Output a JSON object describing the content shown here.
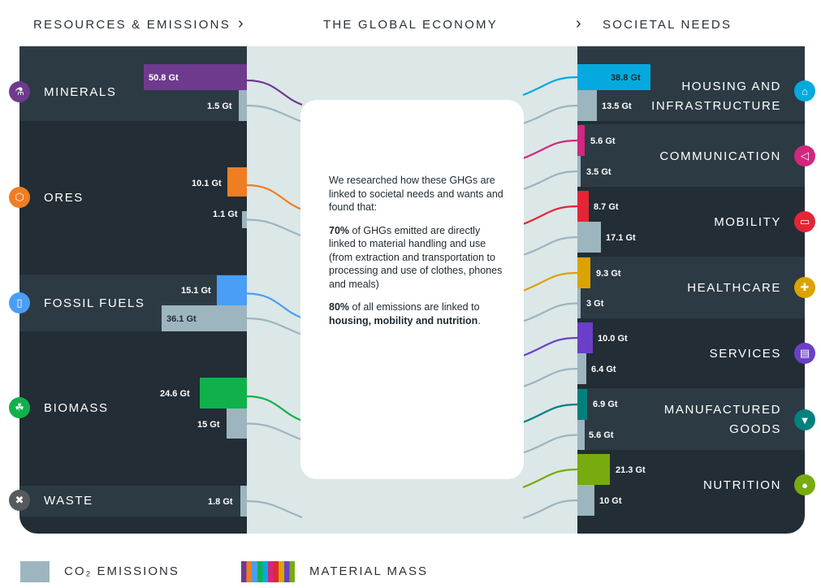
{
  "headers": {
    "left": "RESOURCES & EMISSIONS",
    "middle": "THE GLOBAL ECONOMY",
    "right": "SOCIETAL NEEDS"
  },
  "resources": [
    {
      "label": "MINERALS",
      "icon": "flask-icon",
      "color": "#6e3a8e",
      "material": "50.8 Gt",
      "emissions": "1.5 Gt"
    },
    {
      "label": "ORES",
      "icon": "hexagon-icon",
      "color": "#ef7d22",
      "material": "10.1 Gt",
      "emissions": "1.1 Gt"
    },
    {
      "label": "FOSSIL FUELS",
      "icon": "canister-icon",
      "color": "#4a9ef5",
      "material": "15.1 Gt",
      "emissions": "36.1 Gt"
    },
    {
      "label": "BIOMASS",
      "icon": "leaf-icon",
      "color": "#10b14b",
      "material": "24.6 Gt",
      "emissions": "15 Gt"
    },
    {
      "label": "WASTE",
      "icon": "trash-icon",
      "color": "#555a5f",
      "emissions": "1.8 Gt"
    }
  ],
  "needs": [
    {
      "label": "HOUSING AND INFRASTRUCTURE",
      "label_lines": [
        "HOUSING AND",
        "INFRASTRUCTURE"
      ],
      "icon": "house-icon",
      "color": "#06a9de",
      "material": "38.8 Gt",
      "emissions": "13.5 Gt"
    },
    {
      "label": "COMMUNICATION",
      "label_lines": [
        "COMMUNICATION"
      ],
      "icon": "megaphone-icon",
      "color": "#d2277f",
      "material": "5.6 Gt",
      "emissions": "3.5 Gt"
    },
    {
      "label": "MOBILITY",
      "label_lines": [
        "MOBILITY"
      ],
      "icon": "truck-icon",
      "color": "#e52535",
      "material": "8.7 Gt",
      "emissions": "17.1 Gt"
    },
    {
      "label": "HEALTHCARE",
      "label_lines": [
        "HEALTHCARE"
      ],
      "icon": "cross-icon",
      "color": "#dca300",
      "material": "9.3 Gt",
      "emissions": "3 Gt"
    },
    {
      "label": "SERVICES",
      "label_lines": [
        "SERVICES"
      ],
      "icon": "chat-icon",
      "color": "#6a40c8",
      "material": "10.0 Gt",
      "emissions": "6.4 Gt"
    },
    {
      "label": "MANUFACTURED GOODS",
      "label_lines": [
        "MANUFACTURED",
        "GOODS"
      ],
      "icon": "shirt-icon",
      "color": "#00817e",
      "material": "6.9 Gt",
      "emissions": "5.6 Gt"
    },
    {
      "label": "NUTRITION",
      "label_lines": [
        "NUTRITION"
      ],
      "icon": "apple-icon",
      "color": "#77ab0f",
      "material": "21.3 Gt",
      "emissions": "10 Gt"
    }
  ],
  "emissions_color": "#9db5bf",
  "card": {
    "intro": "We researched how these GHGs are linked to societal needs and wants and found that:",
    "p1_bold": "70%",
    "p1_text": " of GHGs emitted are directly linked to material handling and use (from extraction and transportation to processing and use of clothes, phones and meals)",
    "p2_bold": "80%",
    "p2_text": " of all emissions are linked to ",
    "p2_bold2": "housing, mobility and nutrition",
    "p2_end": "."
  },
  "legend": {
    "co2": "CO₂ EMISSIONS",
    "material": "MATERIAL MASS"
  }
}
